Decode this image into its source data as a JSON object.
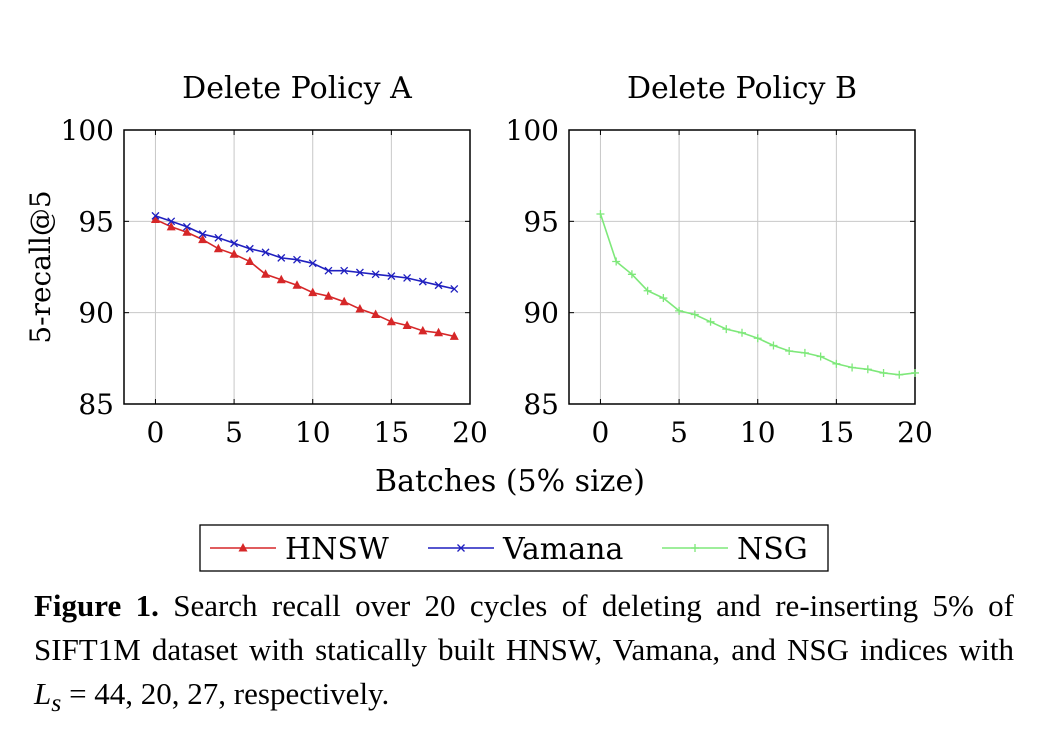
{
  "chart_data": [
    {
      "type": "line",
      "title": "Delete Policy A",
      "xlabel": "Batches (5% size)",
      "ylabel": "5-recall@5",
      "xlim": [
        -2,
        20
      ],
      "ylim": [
        85,
        100
      ],
      "xticks": [
        0,
        5,
        10,
        15,
        20
      ],
      "yticks": [
        85,
        90,
        95,
        100
      ],
      "grid": true,
      "x": [
        0,
        1,
        2,
        3,
        4,
        5,
        6,
        7,
        8,
        9,
        10,
        11,
        12,
        13,
        14,
        15,
        16,
        17,
        18,
        19
      ],
      "series": [
        {
          "name": "HNSW",
          "color": "#d62728",
          "marker": "triangle",
          "values": [
            95.1,
            94.7,
            94.4,
            94.0,
            93.5,
            93.2,
            92.8,
            92.1,
            91.8,
            91.5,
            91.1,
            90.9,
            90.6,
            90.2,
            89.9,
            89.5,
            89.3,
            89.0,
            88.9,
            88.7
          ]
        },
        {
          "name": "Vamana",
          "color": "#1f1fbf",
          "marker": "x",
          "values": [
            95.3,
            95.0,
            94.7,
            94.3,
            94.1,
            93.8,
            93.5,
            93.3,
            93.0,
            92.9,
            92.7,
            92.3,
            92.3,
            92.2,
            92.1,
            92.0,
            91.9,
            91.7,
            91.5,
            91.3
          ]
        }
      ]
    },
    {
      "type": "line",
      "title": "Delete Policy B",
      "xlabel": "Batches (5% size)",
      "ylabel": "",
      "xlim": [
        -2,
        20
      ],
      "ylim": [
        85,
        100
      ],
      "xticks": [
        0,
        5,
        10,
        15,
        20
      ],
      "yticks": [
        85,
        90,
        95,
        100
      ],
      "grid": true,
      "x": [
        0,
        1,
        2,
        3,
        4,
        5,
        6,
        7,
        8,
        9,
        10,
        11,
        12,
        13,
        14,
        15,
        16,
        17,
        18,
        19,
        20
      ],
      "series": [
        {
          "name": "NSG",
          "color": "#7ee87a",
          "marker": "plus",
          "values": [
            95.4,
            92.8,
            92.1,
            91.2,
            90.8,
            90.1,
            89.9,
            89.5,
            89.1,
            88.9,
            88.6,
            88.2,
            87.9,
            87.8,
            87.6,
            87.2,
            87.0,
            86.9,
            86.7,
            86.6,
            86.7
          ]
        }
      ]
    }
  ],
  "legend": [
    {
      "name": "HNSW",
      "color": "#d62728",
      "marker": "triangle"
    },
    {
      "name": "Vamana",
      "color": "#1f1fbf",
      "marker": "x"
    },
    {
      "name": "NSG",
      "color": "#7ee87a",
      "marker": "plus"
    }
  ],
  "caption": {
    "label": "Figure 1.",
    "text_before_math": " Search recall over 20 cycles of deleting and re-inserting 5% of SIFT1M dataset with statically built HNSW, Vamana, and NSG indices with ",
    "math": "L",
    "math_sub": "s",
    "text_after_math": " = 44, 20, 27, respectively."
  }
}
